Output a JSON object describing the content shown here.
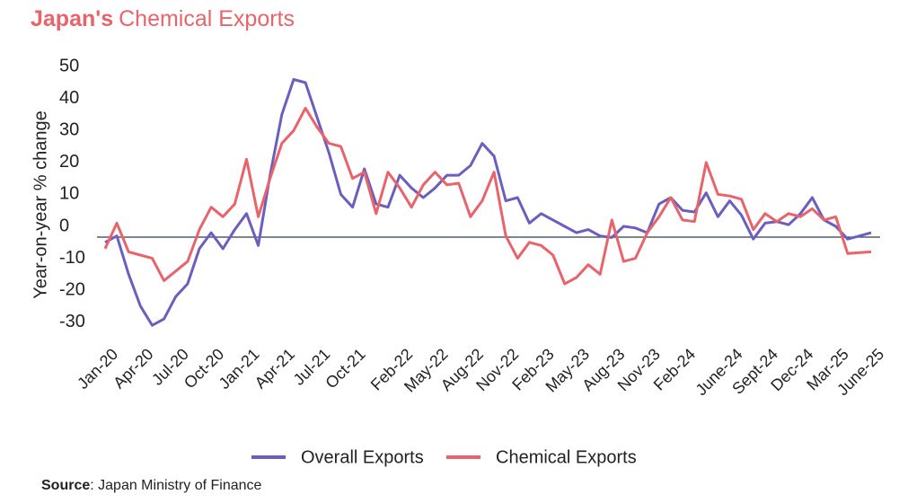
{
  "chart_data": {
    "type": "line",
    "title_bold": "Japan's",
    "title": "Chemical Exports",
    "y_label": "Year-on-year % change",
    "source_label": "Source",
    "source_text": ": Japan Ministry of Finance",
    "categories": [
      "Jan-20",
      null,
      null,
      "Apr-20",
      null,
      null,
      "Jul-20",
      null,
      null,
      "Oct-20",
      null,
      null,
      "Jan-21",
      null,
      null,
      "Apr-21",
      null,
      null,
      "Jul-21",
      null,
      null,
      "Oct-21",
      null,
      null,
      null,
      "Feb-22",
      null,
      null,
      "May-22",
      null,
      null,
      "Aug-22",
      null,
      null,
      "Nov-22",
      null,
      null,
      "Feb-23",
      null,
      null,
      "May-23",
      null,
      null,
      "Aug-23",
      null,
      null,
      "Nov-23",
      null,
      null,
      "Feb-24",
      null,
      null,
      null,
      "June-24",
      null,
      null,
      "Sept-24",
      null,
      null,
      "Dec-24",
      null,
      null,
      "Mar-25",
      null,
      null,
      "June-25"
    ],
    "series": [
      {
        "name": "Overall Exports",
        "color": "#6a5fbf",
        "values": [
          -5,
          -3,
          -15,
          -25,
          -31,
          -29,
          -22,
          -18,
          -7,
          -2,
          -7,
          -1,
          4,
          -6,
          16,
          35,
          46,
          45,
          34,
          23,
          10,
          6,
          18,
          7,
          6,
          16,
          12,
          9,
          12,
          16,
          16,
          19,
          26,
          22,
          8,
          9,
          1,
          4,
          2,
          0,
          -2,
          -1,
          -3,
          -3.5,
          0,
          -0.5,
          -2,
          7,
          9,
          5,
          4.5,
          10.5,
          3,
          8,
          3.5,
          -4,
          1,
          1.5,
          0.5,
          4,
          9,
          2,
          0,
          -4,
          -3,
          -2
        ]
      },
      {
        "name": "Chemical Exports",
        "color": "#e8636a",
        "values": [
          -7,
          1,
          -8,
          -9,
          -10,
          -17,
          -14,
          -11,
          -1,
          6,
          3,
          7,
          21,
          3,
          15,
          26,
          30,
          37,
          31,
          26,
          25,
          15,
          17,
          4,
          17,
          12,
          6,
          13,
          17,
          13,
          13.5,
          3,
          8,
          17,
          -3,
          -10,
          -5,
          -6,
          -9,
          -18,
          -16,
          -12,
          -15,
          2,
          -11,
          -10,
          -2,
          3,
          9,
          2,
          1.5,
          20,
          10,
          9.5,
          8.5,
          -1,
          4,
          1.5,
          4,
          3,
          5.5,
          2,
          3,
          -8.5,
          -8.2,
          -8
        ]
      }
    ],
    "ylim": [
      -36,
      54
    ],
    "yticks": [
      -30,
      -20,
      -10,
      0,
      10,
      20,
      30,
      40,
      50
    ],
    "grid": false,
    "legend": "bottom"
  }
}
